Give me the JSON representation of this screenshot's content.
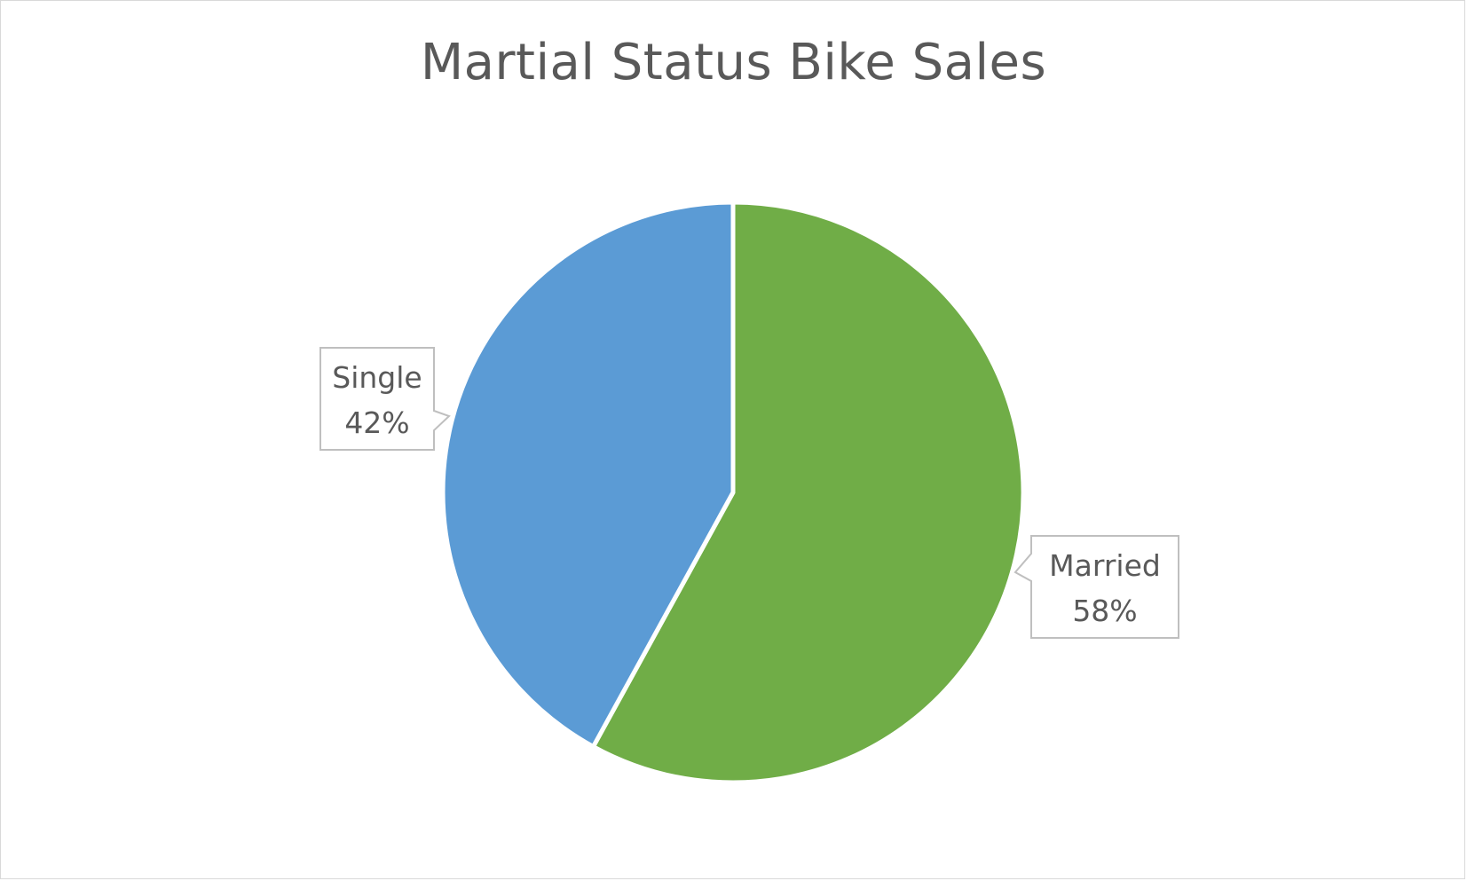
{
  "chart_data": {
    "type": "pie",
    "title": "Martial Status Bike Sales",
    "categories": [
      "Single",
      "Married"
    ],
    "values": [
      42,
      58
    ],
    "value_labels": [
      "42%",
      "58%"
    ],
    "colors": [
      "#5b9bd5",
      "#70ad47"
    ],
    "start": "12 o'clock",
    "direction": "counter-clockwise for Single, clockwise for Married",
    "label_style": "callout boxes with category name and percentage",
    "legend": "none"
  }
}
